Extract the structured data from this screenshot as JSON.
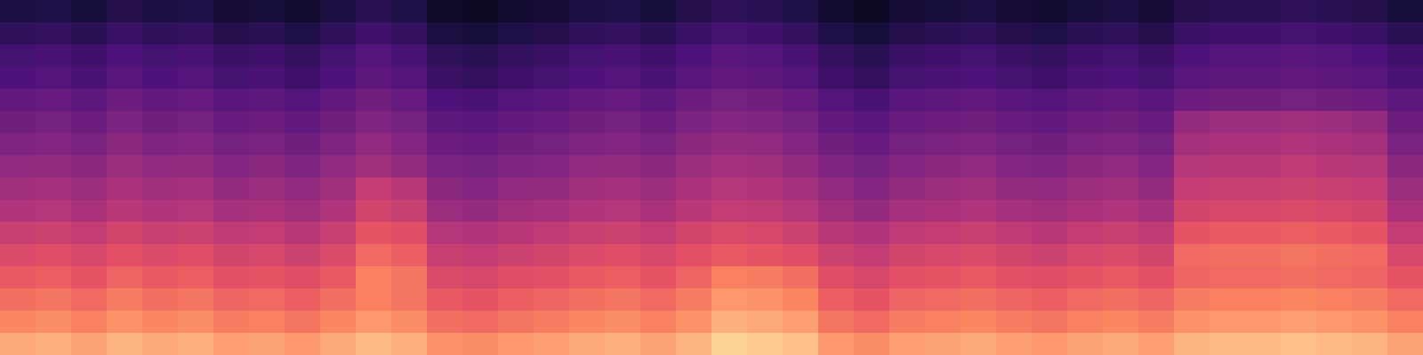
{
  "chart_data": {
    "type": "heatmap",
    "color": "magma",
    "tick_labels": false,
    "zlim": [
      -80,
      0
    ],
    "cells": [
      [
        -70,
        -69,
        -71,
        -68,
        -70,
        -69,
        -72,
        -71,
        -73,
        -70,
        -67,
        -69,
        -74,
        -75,
        -73,
        -72,
        -70,
        -69,
        -71,
        -68,
        -66,
        -67,
        -69,
        -73,
        -75,
        -72,
        -71,
        -70,
        -72,
        -73,
        -71,
        -70,
        -72,
        -68,
        -67,
        -67,
        -66,
        -67,
        -68,
        -71
      ],
      [
        -66,
        -65,
        -67,
        -64,
        -66,
        -65,
        -68,
        -67,
        -69,
        -66,
        -63,
        -65,
        -70,
        -71,
        -69,
        -68,
        -66,
        -65,
        -67,
        -64,
        -62,
        -63,
        -65,
        -69,
        -71,
        -68,
        -67,
        -66,
        -68,
        -69,
        -67,
        -66,
        -68,
        -64,
        -63,
        -63,
        -62,
        -63,
        -64,
        -67
      ],
      [
        -62,
        -61,
        -63,
        -60,
        -62,
        -61,
        -64,
        -63,
        -65,
        -62,
        -59,
        -61,
        -66,
        -67,
        -65,
        -64,
        -62,
        -61,
        -63,
        -60,
        -58,
        -59,
        -61,
        -65,
        -67,
        -64,
        -63,
        -62,
        -64,
        -65,
        -63,
        -62,
        -64,
        -60,
        -59,
        -59,
        -58,
        -59,
        -60,
        -63
      ],
      [
        -60,
        -59,
        -61,
        -58,
        -60,
        -59,
        -62,
        -61,
        -63,
        -60,
        -57,
        -59,
        -64,
        -65,
        -63,
        -62,
        -60,
        -59,
        -61,
        -58,
        -56,
        -57,
        -59,
        -63,
        -65,
        -62,
        -61,
        -60,
        -62,
        -63,
        -61,
        -60,
        -62,
        -58,
        -57,
        -57,
        -56,
        -57,
        -58,
        -61
      ],
      [
        -56,
        -55,
        -57,
        -54,
        -56,
        -55,
        -58,
        -57,
        -59,
        -56,
        -53,
        -55,
        -60,
        -61,
        -59,
        -58,
        -56,
        -55,
        -57,
        -54,
        -52,
        -53,
        -55,
        -59,
        -61,
        -58,
        -57,
        -56,
        -58,
        -59,
        -57,
        -56,
        -58,
        -54,
        -53,
        -53,
        -52,
        -53,
        -54,
        -57
      ],
      [
        -53,
        -52,
        -54,
        -51,
        -53,
        -52,
        -55,
        -54,
        -56,
        -53,
        -50,
        -52,
        -57,
        -58,
        -56,
        -55,
        -53,
        -52,
        -54,
        -51,
        -49,
        -50,
        -52,
        -56,
        -58,
        -55,
        -54,
        -53,
        -55,
        -56,
        -54,
        -53,
        -55,
        -46,
        -45,
        -45,
        -44,
        -45,
        -46,
        -54
      ],
      [
        -50,
        -49,
        -51,
        -48,
        -50,
        -49,
        -52,
        -51,
        -53,
        -50,
        -47,
        -49,
        -54,
        -55,
        -53,
        -52,
        -50,
        -49,
        -51,
        -48,
        -46,
        -47,
        -49,
        -53,
        -55,
        -52,
        -51,
        -50,
        -52,
        -53,
        -51,
        -50,
        -52,
        -43,
        -42,
        -42,
        -41,
        -42,
        -43,
        -51
      ],
      [
        -47,
        -46,
        -48,
        -45,
        -47,
        -46,
        -49,
        -48,
        -50,
        -47,
        -44,
        -46,
        -51,
        -52,
        -50,
        -49,
        -47,
        -46,
        -48,
        -45,
        -43,
        -44,
        -46,
        -50,
        -52,
        -49,
        -48,
        -47,
        -49,
        -50,
        -48,
        -47,
        -49,
        -40,
        -39,
        -39,
        -38,
        -39,
        -40,
        -48
      ],
      [
        -44,
        -43,
        -45,
        -42,
        -44,
        -43,
        -46,
        -45,
        -47,
        -44,
        -37,
        -39,
        -48,
        -49,
        -47,
        -46,
        -44,
        -43,
        -45,
        -42,
        -40,
        -41,
        -43,
        -47,
        -49,
        -46,
        -45,
        -44,
        -46,
        -47,
        -45,
        -44,
        -46,
        -37,
        -36,
        -36,
        -35,
        -36,
        -37,
        -45
      ],
      [
        -41,
        -40,
        -42,
        -39,
        -41,
        -40,
        -43,
        -42,
        -44,
        -41,
        -34,
        -36,
        -45,
        -46,
        -44,
        -43,
        -41,
        -40,
        -42,
        -39,
        -37,
        -38,
        -40,
        -44,
        -46,
        -43,
        -42,
        -41,
        -43,
        -44,
        -42,
        -41,
        -43,
        -34,
        -33,
        -33,
        -32,
        -33,
        -34,
        -42
      ],
      [
        -36,
        -35,
        -37,
        -34,
        -36,
        -35,
        -38,
        -37,
        -39,
        -36,
        -29,
        -31,
        -40,
        -41,
        -39,
        -38,
        -36,
        -35,
        -37,
        -34,
        -32,
        -33,
        -35,
        -39,
        -41,
        -38,
        -37,
        -36,
        -38,
        -39,
        -37,
        -36,
        -38,
        -29,
        -28,
        -28,
        -27,
        -28,
        -29,
        -37
      ],
      [
        -32,
        -31,
        -33,
        -30,
        -32,
        -31,
        -34,
        -33,
        -35,
        -32,
        -25,
        -27,
        -36,
        -37,
        -35,
        -34,
        -32,
        -31,
        -33,
        -30,
        -28,
        -29,
        -31,
        -35,
        -37,
        -34,
        -33,
        -32,
        -34,
        -35,
        -33,
        -32,
        -34,
        -25,
        -24,
        -24,
        -23,
        -24,
        -25,
        -33
      ],
      [
        -28,
        -27,
        -29,
        -26,
        -28,
        -27,
        -30,
        -29,
        -31,
        -28,
        -21,
        -23,
        -32,
        -33,
        -31,
        -30,
        -28,
        -27,
        -29,
        -26,
        -21,
        -22,
        -24,
        -31,
        -33,
        -30,
        -29,
        -28,
        -30,
        -31,
        -29,
        -28,
        -30,
        -26,
        -25,
        -25,
        -24,
        -25,
        -26,
        -29
      ],
      [
        -24,
        -23,
        -25,
        -22,
        -24,
        -23,
        -26,
        -25,
        -27,
        -24,
        -21,
        -23,
        -28,
        -29,
        -27,
        -26,
        -24,
        -23,
        -25,
        -22,
        -17,
        -18,
        -20,
        -27,
        -29,
        -26,
        -25,
        -24,
        -26,
        -27,
        -25,
        -24,
        -26,
        -22,
        -21,
        -21,
        -20,
        -21,
        -22,
        -25
      ],
      [
        -20,
        -19,
        -21,
        -18,
        -20,
        -19,
        -22,
        -21,
        -23,
        -20,
        -17,
        -19,
        -24,
        -25,
        -23,
        -22,
        -20,
        -19,
        -21,
        -18,
        -13,
        -14,
        -16,
        -23,
        -25,
        -22,
        -21,
        -20,
        -22,
        -23,
        -21,
        -20,
        -22,
        -18,
        -17,
        -17,
        -16,
        -17,
        -18,
        -21
      ],
      [
        -14,
        -13,
        -15,
        -12,
        -14,
        -13,
        -16,
        -15,
        -17,
        -14,
        -11,
        -13,
        -18,
        -19,
        -17,
        -16,
        -14,
        -13,
        -15,
        -12,
        -7,
        -8,
        -10,
        -17,
        -19,
        -16,
        -15,
        -14,
        -16,
        -17,
        -15,
        -14,
        -16,
        -12,
        -11,
        -11,
        -10,
        -11,
        -12,
        -15
      ]
    ]
  }
}
